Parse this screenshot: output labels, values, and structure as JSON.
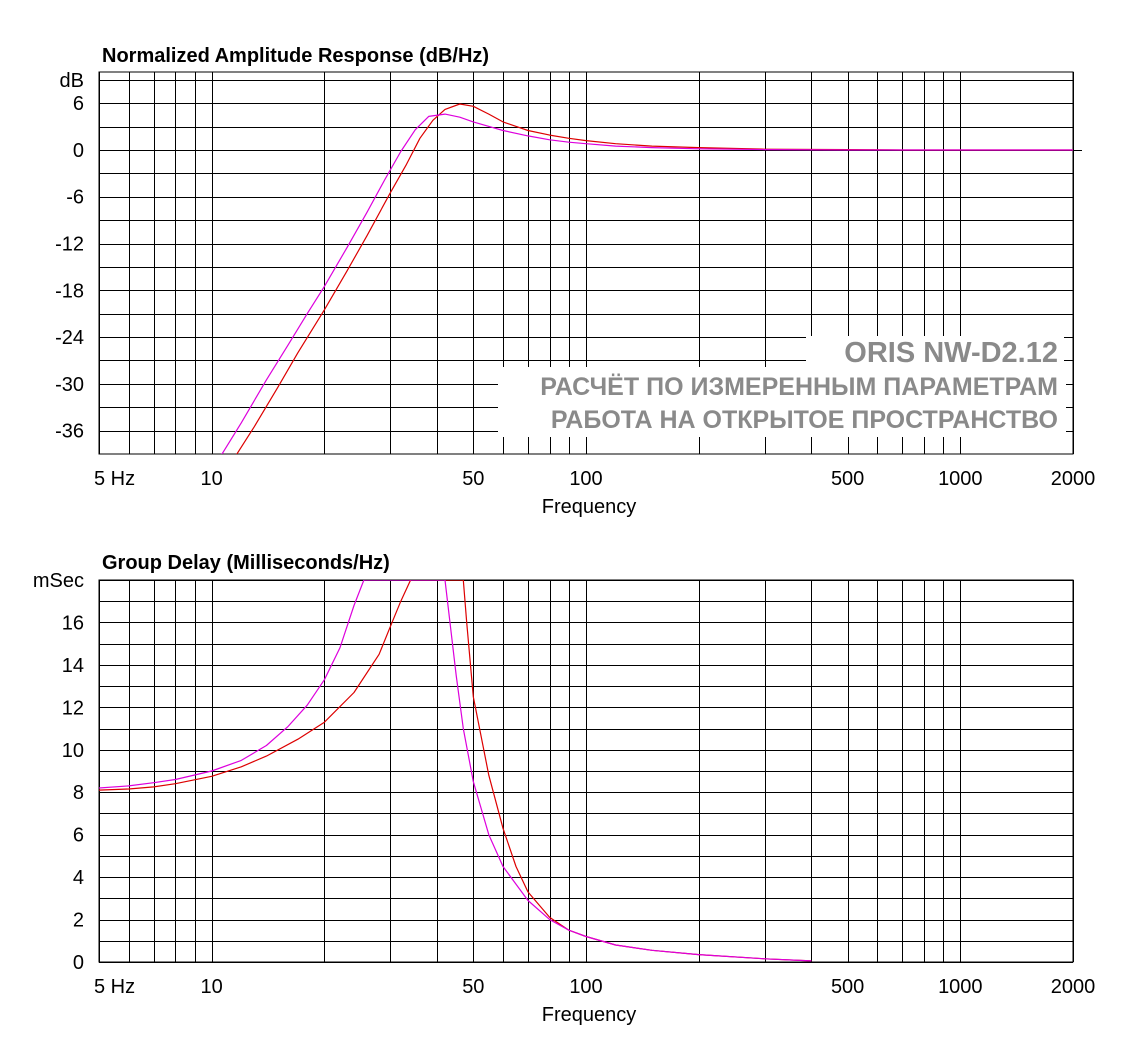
{
  "watermark": {
    "line1": "ORIS NW-D2.12",
    "line2": "РАСЧЁТ ПО ИЗМЕРЕННЫМ ПАРАМЕТРАМ",
    "line3": "РАБОТА НА ОТКРЫТОЕ ПРОСТРАНСТВО"
  },
  "colors": {
    "series_red": "#dd0000",
    "series_magenta": "#dd00dd",
    "grid": "#000000"
  },
  "chart_data": [
    {
      "type": "line",
      "title": "Normalized Amplitude Response (dB/Hz)",
      "xlabel": "Frequency",
      "ylabel": "dB",
      "x_scale": "log",
      "xlim": [
        5,
        2000
      ],
      "ylim": [
        -39,
        10
      ],
      "x_tick_labels": [
        "5  Hz",
        "10",
        "50",
        "100",
        "500",
        "1000",
        "2000"
      ],
      "x_tick_values": [
        5,
        10,
        50,
        100,
        500,
        1000,
        2000
      ],
      "y_tick_labels": [
        "dB",
        "6",
        "0",
        "-6",
        "-12",
        "-18",
        "-24",
        "-30",
        "-36"
      ],
      "y_tick_values": [
        null,
        6,
        0,
        -6,
        -12,
        -18,
        -24,
        -30,
        -36
      ],
      "grid": true,
      "series": [
        {
          "color": "#dd0000",
          "x": [
            11.5,
            13,
            15,
            17,
            20,
            23,
            26,
            30,
            33,
            36,
            39,
            42,
            46,
            50,
            55,
            60,
            70,
            80,
            90,
            100,
            120,
            150,
            200,
            300,
            500,
            700,
            1000,
            2000
          ],
          "y": [
            -39.5,
            -35.5,
            -30.5,
            -26.0,
            -20.5,
            -15.5,
            -11.0,
            -5.5,
            -2.0,
            1.5,
            3.8,
            5.2,
            5.9,
            5.6,
            4.6,
            3.6,
            2.5,
            1.9,
            1.5,
            1.2,
            0.8,
            0.5,
            0.3,
            0.1,
            0.05,
            0.0,
            0.0,
            0.0
          ]
        },
        {
          "color": "#dd00dd",
          "x": [
            10.5,
            12,
            14,
            16,
            18,
            20,
            23,
            26,
            29,
            32,
            35,
            38,
            42,
            46,
            50,
            60,
            70,
            80,
            90,
            100,
            120,
            150,
            200,
            300,
            500,
            700,
            1000,
            2000
          ],
          "y": [
            -39.5,
            -35.0,
            -29.5,
            -25.0,
            -21.0,
            -17.5,
            -12.5,
            -8.0,
            -3.8,
            -0.2,
            2.6,
            4.3,
            4.6,
            4.2,
            3.6,
            2.5,
            1.8,
            1.3,
            1.0,
            0.8,
            0.5,
            0.3,
            0.15,
            0.05,
            0.0,
            0.0,
            0.0,
            0.0
          ]
        }
      ]
    },
    {
      "type": "line",
      "title": "Group Delay (Milliseconds/Hz)",
      "xlabel": "Frequency",
      "ylabel": "mSec",
      "x_scale": "log",
      "xlim": [
        5,
        2000
      ],
      "ylim": [
        0,
        18
      ],
      "x_tick_labels": [
        "5  Hz",
        "10",
        "50",
        "100",
        "500",
        "1000",
        "2000"
      ],
      "x_tick_values": [
        5,
        10,
        50,
        100,
        500,
        1000,
        2000
      ],
      "y_tick_labels": [
        "mSec",
        "16",
        "14",
        "12",
        "10",
        "8",
        "6",
        "4",
        "2",
        "0"
      ],
      "y_tick_values": [
        18,
        16,
        14,
        12,
        10,
        8,
        6,
        4,
        2,
        0
      ],
      "grid": true,
      "series": [
        {
          "color": "#dd0000",
          "x": [
            5,
            6,
            7,
            8,
            10,
            12,
            14,
            17,
            20,
            24,
            28,
            30,
            32,
            34,
            35.5,
            47,
            48,
            50,
            55,
            60,
            65,
            70,
            80,
            90,
            100,
            120,
            150,
            200,
            300,
            400
          ],
          "y": [
            8.1,
            8.15,
            8.25,
            8.4,
            8.75,
            9.2,
            9.7,
            10.5,
            11.3,
            12.7,
            14.5,
            15.8,
            17.0,
            18.0,
            18.0,
            18.0,
            16.0,
            12.5,
            8.8,
            6.3,
            4.5,
            3.3,
            2.1,
            1.5,
            1.2,
            0.8,
            0.55,
            0.35,
            0.15,
            0.05
          ]
        },
        {
          "color": "#dd00dd",
          "x": [
            5,
            6,
            7,
            8,
            10,
            12,
            14,
            16,
            18,
            20,
            22,
            24,
            25.5,
            42,
            45,
            47,
            50,
            55,
            60,
            70,
            80,
            90,
            100,
            120,
            150,
            200,
            300,
            400
          ],
          "y": [
            8.2,
            8.3,
            8.45,
            8.6,
            9.0,
            9.5,
            10.2,
            11.1,
            12.1,
            13.3,
            14.8,
            16.8,
            18.0,
            18.0,
            13.5,
            11.0,
            8.5,
            6.0,
            4.5,
            2.9,
            2.0,
            1.5,
            1.2,
            0.8,
            0.55,
            0.35,
            0.15,
            0.05
          ]
        }
      ]
    }
  ]
}
